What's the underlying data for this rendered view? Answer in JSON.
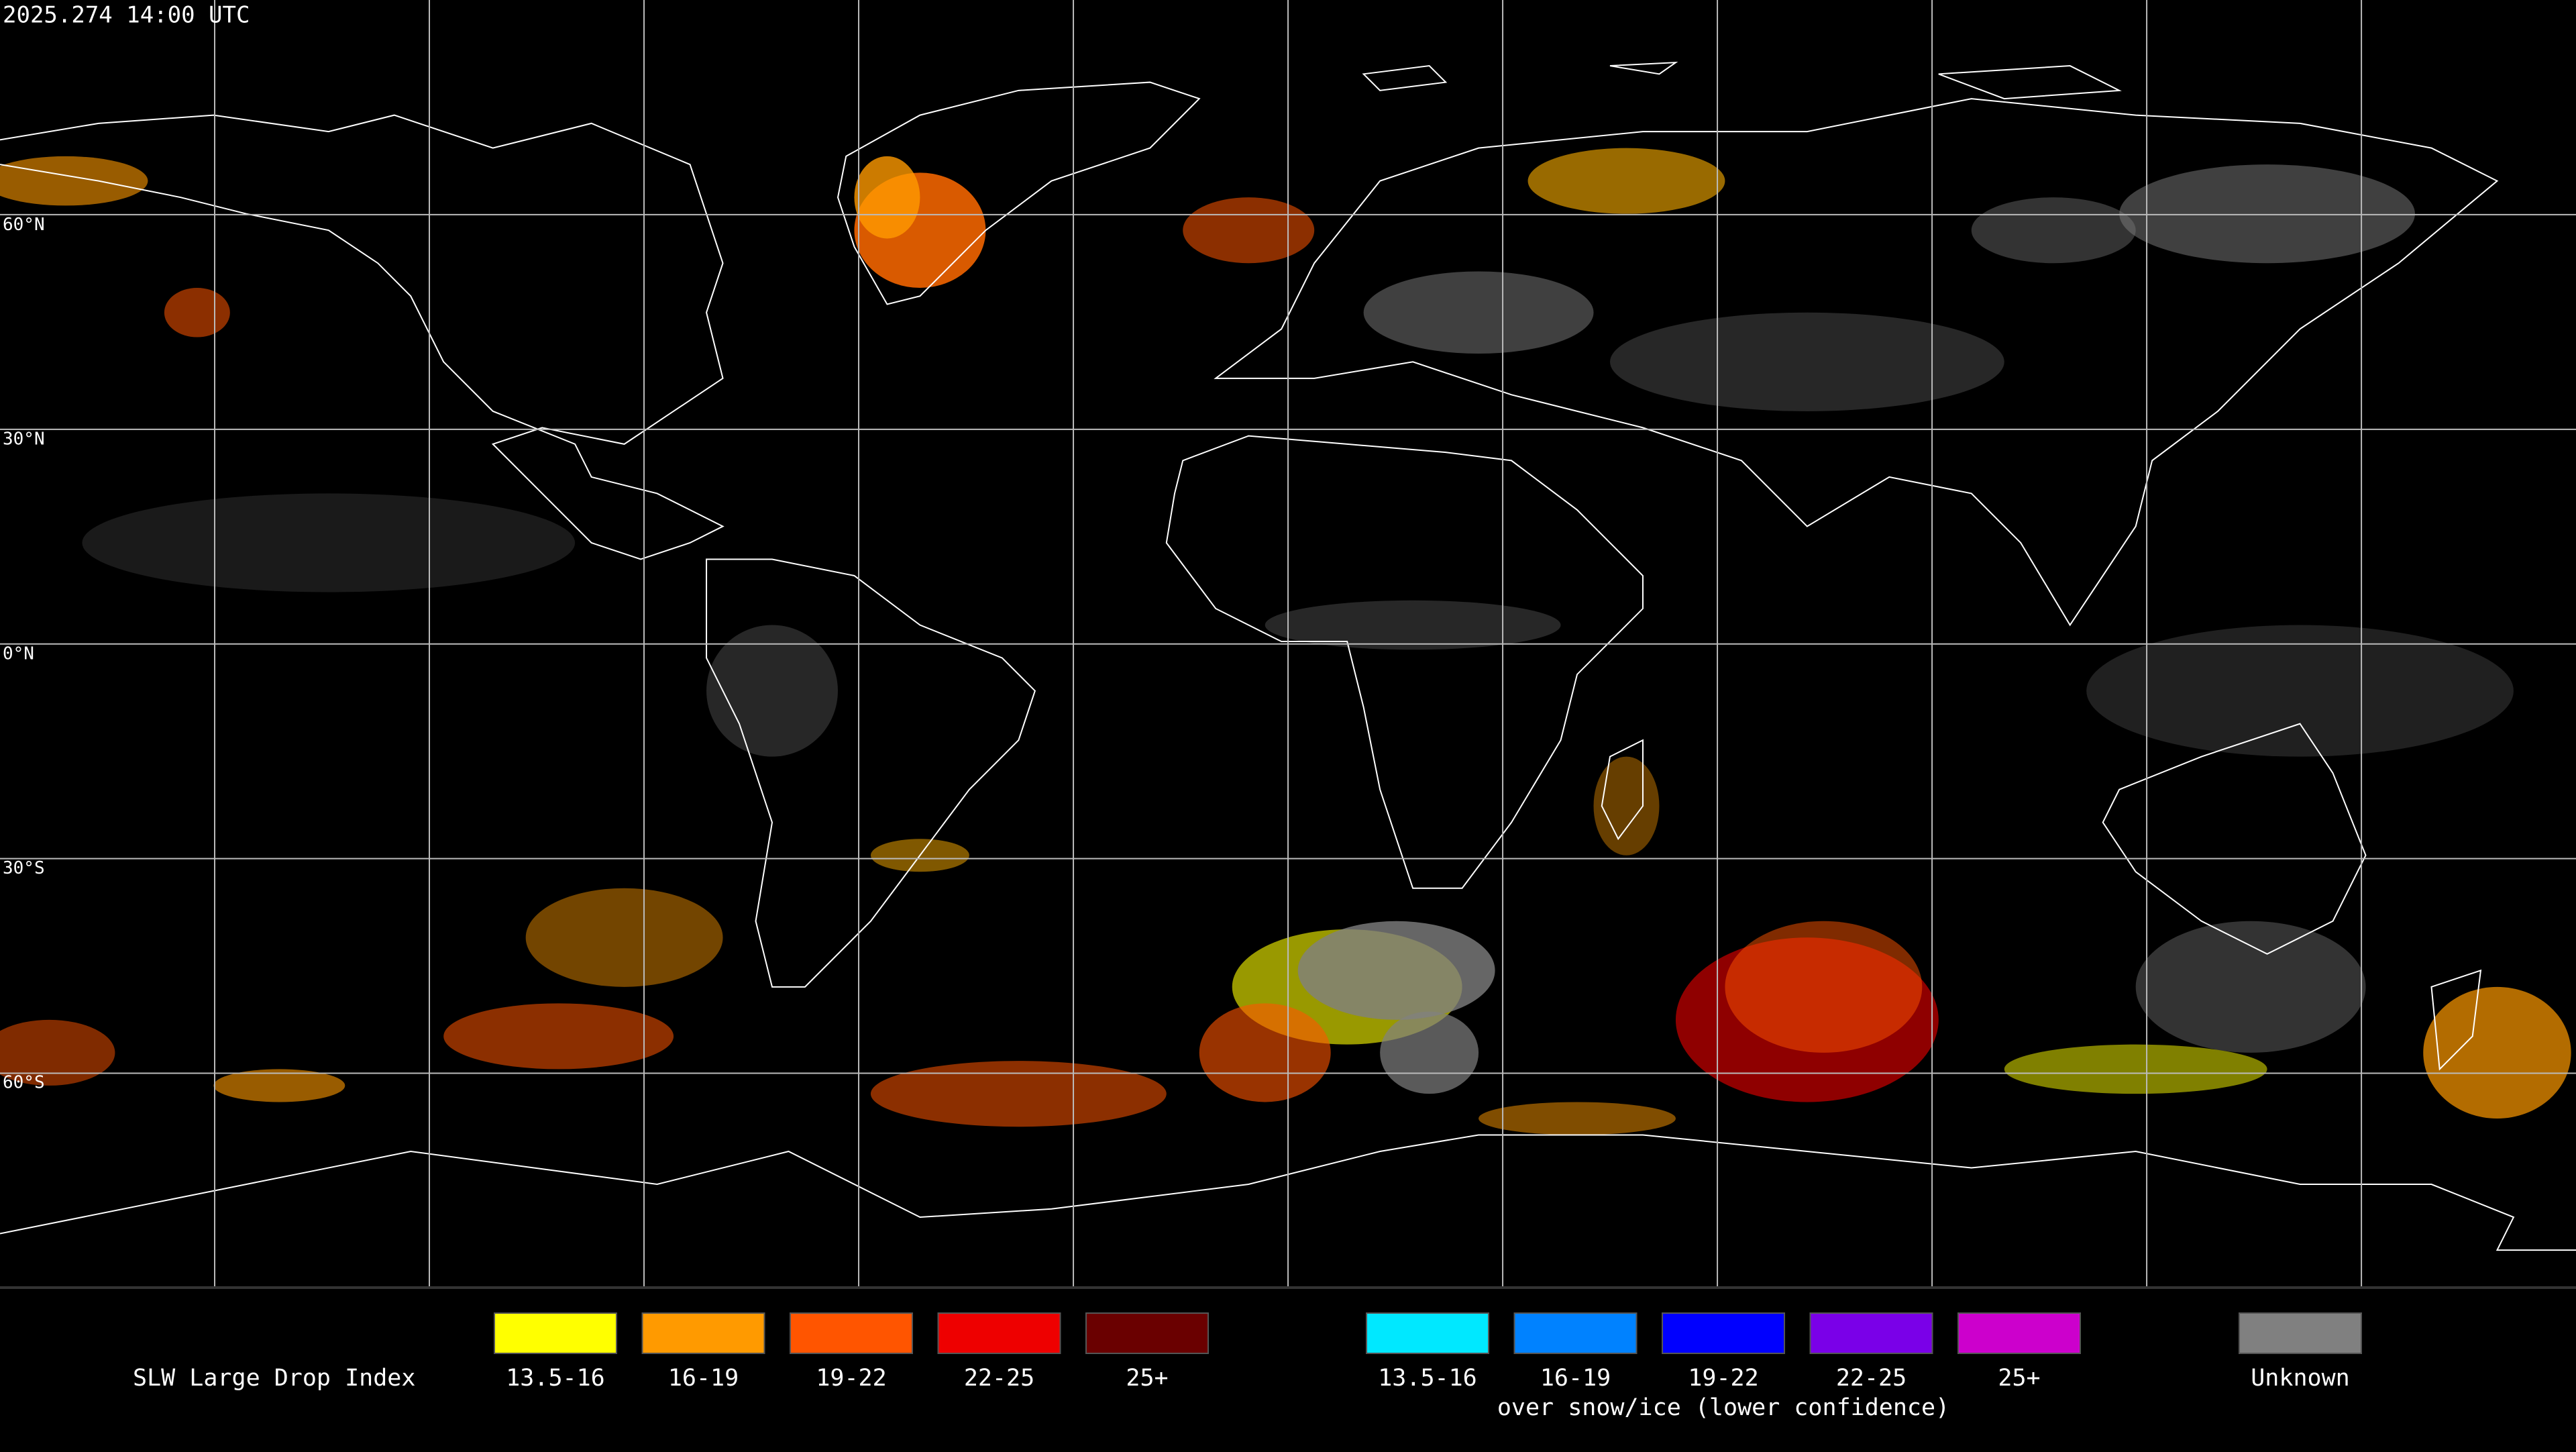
{
  "timestamp": "2025.274 14:00 UTC",
  "lat_labels": [
    "60°N",
    "30°N",
    "0°N",
    "30°S",
    "60°S"
  ],
  "legend": {
    "title": "SLW Large Drop Index",
    "groups": [
      {
        "items": [
          {
            "label": "13.5-16",
            "color": "#ffff00"
          },
          {
            "label": "16-19",
            "color": "#ff9a00"
          },
          {
            "label": "19-22",
            "color": "#ff5500"
          },
          {
            "label": "22-25",
            "color": "#ee0000"
          },
          {
            "label": "25+",
            "color": "#6a0000"
          }
        ]
      },
      {
        "caption": "over snow/ice (lower confidence)",
        "items": [
          {
            "label": "13.5-16",
            "color": "#00e8ff"
          },
          {
            "label": "16-19",
            "color": "#0082ff"
          },
          {
            "label": "19-22",
            "color": "#0000ff"
          },
          {
            "label": "22-25",
            "color": "#7a00e8"
          },
          {
            "label": "25+",
            "color": "#cc00cc"
          }
        ]
      },
      {
        "items": [
          {
            "label": "Unknown",
            "color": "#808080"
          }
        ]
      }
    ]
  }
}
